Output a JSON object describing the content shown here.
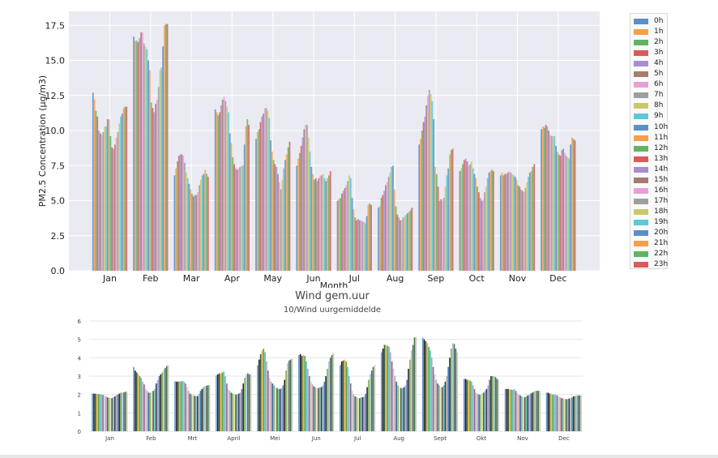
{
  "chart_data": [
    {
      "type": "bar",
      "title": "",
      "xlabel": "Month",
      "ylabel": "PM2.5 Concentration (µg/m3)",
      "ylim": [
        0,
        18.5
      ],
      "yticks": [
        "0.0",
        "2.5",
        "5.0",
        "7.5",
        "10.0",
        "12.5",
        "15.0",
        "17.5"
      ],
      "grid": true,
      "legend_position": "right",
      "categories": [
        "Jan",
        "Feb",
        "Mar",
        "Apr",
        "May",
        "Jun",
        "Jul",
        "Aug",
        "Sep",
        "Oct",
        "Nov",
        "Dec"
      ],
      "series_names": [
        "0h",
        "1h",
        "2h",
        "3h",
        "4h",
        "5h",
        "6h",
        "7h",
        "8h",
        "9h",
        "10h",
        "11h",
        "12h",
        "13h",
        "14h",
        "15h",
        "16h",
        "17h",
        "18h",
        "19h",
        "20h",
        "21h",
        "22h",
        "23h"
      ],
      "series_colors": [
        "#5b8fc7",
        "#f5a04a",
        "#62b462",
        "#d85c5c",
        "#a88ed0",
        "#a17d72",
        "#e79fd4",
        "#9e9e9e",
        "#c9c96a",
        "#5fc7d6",
        "#5b8fc7",
        "#f5a04a",
        "#62b462",
        "#d85c5c",
        "#a88ed0",
        "#a17d72",
        "#e79fd4",
        "#9e9e9e",
        "#c9c96a",
        "#5fc7d6",
        "#5b8fc7",
        "#f5a04a",
        "#62b462",
        "#d85c5c"
      ],
      "values_by_month": [
        [
          12.7,
          12.2,
          11.4,
          11.0,
          10.0,
          9.8,
          9.7,
          9.9,
          10.3,
          10.3,
          10.8,
          10.8,
          9.6,
          8.8,
          8.7,
          9.0,
          9.5,
          9.9,
          10.5,
          11.0,
          11.2,
          11.6,
          11.7,
          11.7
        ],
        [
          16.7,
          16.4,
          16.4,
          16.3,
          16.6,
          17.0,
          17.0,
          16.2,
          16.0,
          15.8,
          15.0,
          14.3,
          12.0,
          11.6,
          11.3,
          11.9,
          12.2,
          13.1,
          14.3,
          14.5,
          16.0,
          17.5,
          17.6,
          17.6
        ],
        [
          6.8,
          7.3,
          7.8,
          8.2,
          8.3,
          8.3,
          8.2,
          7.7,
          7.0,
          6.6,
          6.2,
          5.8,
          5.5,
          5.3,
          5.4,
          5.4,
          5.6,
          6.1,
          6.5,
          6.8,
          6.9,
          7.2,
          6.9,
          6.7
        ],
        [
          11.5,
          11.3,
          11.1,
          11.3,
          11.8,
          12.2,
          12.4,
          12.1,
          11.7,
          11.3,
          9.8,
          9.1,
          8.1,
          7.6,
          7.3,
          7.2,
          7.3,
          7.4,
          7.5,
          7.5,
          9.0,
          10.3,
          10.8,
          10.4
        ],
        [
          9.4,
          9.9,
          10.1,
          10.6,
          11.0,
          11.2,
          11.6,
          11.6,
          11.4,
          10.9,
          9.3,
          8.5,
          7.9,
          7.6,
          7.4,
          6.9,
          6.3,
          5.8,
          6.5,
          7.3,
          7.9,
          8.3,
          8.8,
          9.2
        ],
        [
          7.5,
          8.0,
          8.4,
          8.9,
          9.5,
          10.1,
          10.4,
          10.4,
          9.5,
          8.5,
          7.4,
          6.9,
          6.5,
          6.6,
          6.4,
          6.6,
          6.8,
          6.8,
          6.9,
          6.6,
          6.4,
          6.6,
          6.8,
          7.1
        ],
        [
          5.0,
          5.1,
          5.2,
          5.5,
          5.7,
          5.9,
          6.1,
          6.4,
          6.8,
          6.6,
          5.2,
          4.4,
          3.8,
          3.6,
          3.7,
          3.6,
          3.6,
          3.5,
          3.5,
          3.4,
          3.9,
          4.7,
          4.8,
          4.7
        ],
        [
          4.5,
          4.6,
          5.2,
          5.4,
          5.7,
          6.1,
          6.3,
          6.7,
          7.0,
          7.4,
          7.5,
          5.8,
          4.6,
          4.0,
          3.8,
          3.6,
          3.6,
          3.8,
          3.9,
          4.0,
          4.1,
          4.2,
          4.3,
          4.5
        ],
        [
          9.0,
          9.4,
          10.0,
          10.6,
          11.0,
          11.8,
          12.5,
          12.9,
          12.6,
          12.1,
          10.8,
          7.4,
          6.9,
          6.0,
          5.0,
          5.1,
          5.0,
          5.2,
          6.0,
          6.8,
          7.3,
          8.3,
          8.6,
          8.7
        ],
        [
          7.1,
          7.3,
          7.6,
          7.9,
          8.0,
          7.8,
          7.5,
          7.6,
          7.8,
          7.3,
          6.9,
          6.6,
          6.0,
          5.6,
          5.2,
          5.0,
          5.1,
          5.6,
          6.0,
          6.6,
          7.0,
          7.1,
          7.2,
          7.1
        ],
        [
          6.8,
          7.0,
          6.8,
          6.9,
          6.9,
          7.0,
          7.1,
          7.0,
          6.9,
          6.8,
          6.7,
          6.5,
          6.1,
          6.0,
          5.8,
          5.7,
          5.6,
          5.9,
          6.3,
          6.7,
          7.0,
          7.1,
          7.4,
          7.6
        ],
        [
          10.1,
          10.3,
          10.2,
          10.4,
          10.3,
          10.0,
          9.7,
          9.6,
          9.6,
          9.6,
          8.9,
          8.5,
          8.3,
          8.2,
          8.6,
          8.7,
          8.4,
          8.2,
          8.1,
          8.0,
          9.0,
          9.5,
          9.4,
          9.3
        ]
      ]
    },
    {
      "type": "bar",
      "title": "Wind gem.uur",
      "subtitle": "10/Wind uurgemiddelde",
      "xlabel": "",
      "ylabel": "",
      "ylim": [
        0,
        6
      ],
      "yticks": [
        "0",
        "1",
        "2",
        "3",
        "4",
        "5",
        "6"
      ],
      "grid": true,
      "categories": [
        "Jan",
        "Feb",
        "Mrt",
        "April",
        "Mei",
        "Jun",
        "Jul",
        "Aug",
        "Sept",
        "Okt",
        "Nov",
        "Dec"
      ],
      "values_by_month": [
        [
          2.05,
          2.05,
          2.04,
          2.03,
          2.03,
          2.02,
          2.0,
          1.98,
          1.93,
          1.9,
          1.85,
          1.82,
          1.8,
          1.8,
          1.85,
          1.9,
          1.98,
          2.0,
          2.05,
          2.1,
          2.1,
          2.12,
          2.15,
          2.15
        ],
        [
          3.5,
          3.3,
          3.2,
          3.1,
          3.0,
          2.9,
          2.7,
          2.55,
          2.3,
          2.2,
          2.1,
          2.1,
          2.1,
          2.2,
          2.3,
          2.6,
          2.8,
          3.0,
          3.1,
          3.2,
          3.35,
          3.45,
          3.55,
          3.6
        ],
        [
          2.72,
          2.7,
          2.7,
          2.71,
          2.72,
          2.73,
          2.7,
          2.6,
          2.4,
          2.2,
          2.05,
          2.0,
          1.95,
          1.93,
          1.9,
          1.92,
          2.05,
          2.2,
          2.3,
          2.4,
          2.45,
          2.48,
          2.5,
          2.5
        ],
        [
          3.05,
          3.1,
          3.15,
          3.15,
          3.2,
          3.25,
          3.0,
          2.6,
          2.3,
          2.2,
          2.1,
          2.05,
          2.0,
          2.0,
          2.0,
          2.05,
          2.1,
          2.3,
          2.6,
          2.9,
          3.1,
          3.15,
          3.1,
          3.1
        ],
        [
          3.6,
          3.9,
          4.2,
          4.4,
          4.5,
          4.3,
          3.8,
          3.3,
          2.9,
          2.7,
          2.6,
          2.5,
          2.4,
          2.35,
          2.3,
          2.3,
          2.35,
          2.5,
          2.8,
          3.3,
          3.7,
          3.85,
          3.9,
          3.95
        ],
        [
          4.15,
          4.2,
          4.1,
          4.15,
          4.1,
          3.8,
          3.4,
          3.0,
          2.7,
          2.55,
          2.45,
          2.4,
          2.35,
          2.35,
          2.4,
          2.4,
          2.5,
          2.7,
          3.0,
          3.4,
          3.8,
          4.0,
          4.15,
          4.25
        ],
        [
          3.6,
          3.8,
          3.85,
          3.9,
          3.8,
          3.5,
          3.0,
          2.6,
          2.2,
          2.0,
          1.9,
          1.85,
          1.8,
          1.8,
          1.85,
          1.85,
          1.9,
          2.05,
          2.4,
          2.8,
          3.1,
          3.3,
          3.5,
          3.6
        ],
        [
          4.3,
          4.5,
          4.7,
          4.7,
          4.65,
          4.6,
          4.3,
          3.8,
          3.4,
          3.0,
          2.7,
          2.5,
          2.4,
          2.35,
          2.35,
          2.4,
          2.5,
          2.8,
          3.4,
          3.9,
          4.4,
          4.7,
          5.1,
          5.15
        ],
        [
          5.1,
          5.0,
          4.9,
          4.8,
          4.6,
          4.4,
          4.0,
          3.5,
          3.1,
          2.8,
          2.6,
          2.5,
          2.4,
          2.4,
          2.5,
          2.7,
          3.0,
          3.5,
          4.0,
          4.5,
          4.8,
          4.75,
          4.5,
          4.3
        ],
        [
          2.85,
          2.85,
          2.8,
          2.8,
          2.75,
          2.7,
          2.5,
          2.3,
          2.1,
          2.05,
          2.0,
          2.0,
          2.05,
          2.1,
          2.2,
          2.3,
          2.5,
          2.8,
          3.0,
          3.0,
          3.0,
          2.95,
          2.85,
          2.8
        ],
        [
          2.3,
          2.3,
          2.3,
          2.28,
          2.27,
          2.25,
          2.3,
          2.2,
          2.1,
          2.0,
          1.95,
          1.9,
          1.85,
          1.85,
          1.9,
          1.95,
          2.0,
          2.05,
          2.1,
          2.15,
          2.2,
          2.2,
          2.2,
          2.2
        ],
        [
          2.1,
          2.1,
          2.05,
          2.05,
          2.0,
          2.0,
          2.0,
          1.95,
          1.9,
          1.85,
          1.8,
          1.78,
          1.75,
          1.75,
          1.75,
          1.78,
          1.8,
          1.85,
          1.9,
          1.92,
          1.95,
          1.95,
          1.95,
          1.95
        ]
      ],
      "palette": [
        "#6699cc",
        "#222222",
        "#3a5a3a",
        "#f0b040",
        "#4aa84a",
        "#55bbcc",
        "#aaaaaa",
        "#8a6a9a",
        "#cccccc",
        "#d4a0a0",
        "#3366aa",
        "#88bb66",
        "#e0e0a0",
        "#555555",
        "#60c0a0",
        "#333366",
        "#b0b0b0",
        "#4477bb",
        "#2a2a2a",
        "#88aa44",
        "#99ccdd",
        "#666666",
        "#447744",
        "#c8c8c8"
      ]
    }
  ]
}
